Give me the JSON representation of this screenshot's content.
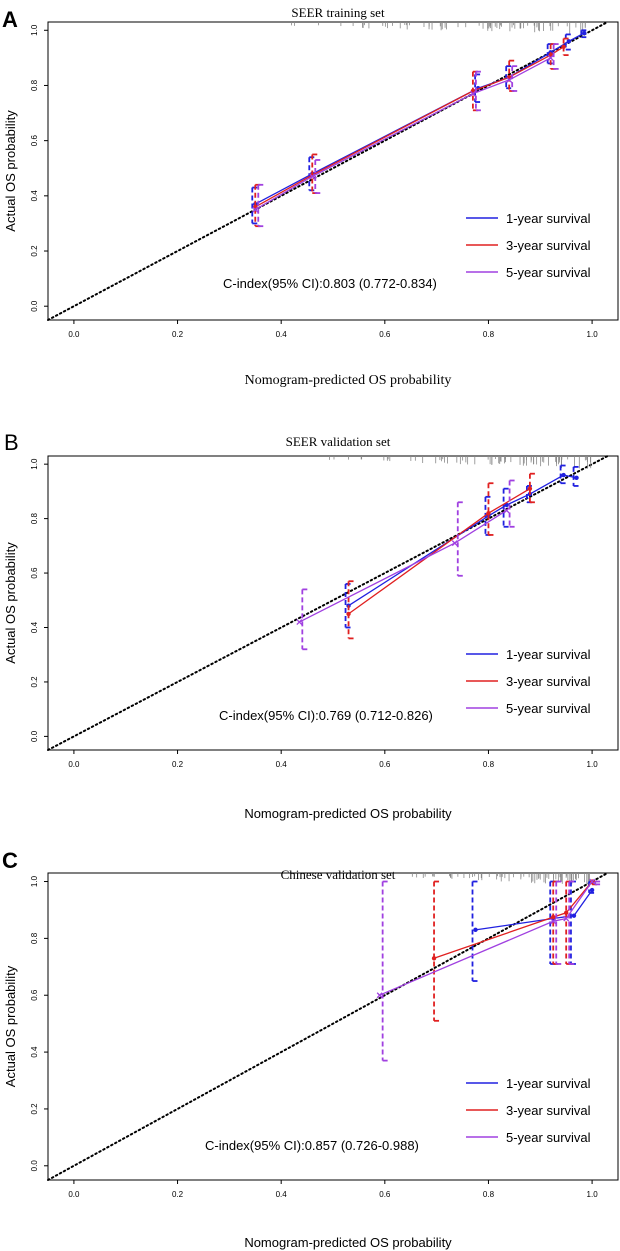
{
  "legend": [
    {
      "label": "1-year survival",
      "color": "#2020e0"
    },
    {
      "label": "3-year survival",
      "color": "#e02020"
    },
    {
      "label": "5-year survival",
      "color": "#a040e0"
    }
  ],
  "chart_data": [
    {
      "type": "line",
      "panel_label": "A",
      "title": "SEER training set",
      "xlabel": "Nomogram-predicted OS probability",
      "ylabel": "Actual OS probability",
      "xlim": [
        -0.05,
        1.05
      ],
      "ylim": [
        -0.05,
        1.03
      ],
      "x_ticks": [
        "0.0",
        "0.2",
        "0.4",
        "0.6",
        "0.8",
        "1.0"
      ],
      "y_ticks": [
        "0.0",
        "0.2",
        "0.4",
        "0.6",
        "0.8",
        "1.0"
      ],
      "cindex": "C-index(95% CI):0.803 (0.772-0.834)",
      "reference_line": "ideal (y = x), dotted",
      "series": [
        {
          "name": "1-year survival",
          "x": [
            0.35,
            0.46,
            0.78,
            0.84,
            0.92,
            0.955,
            0.985
          ],
          "y": [
            0.37,
            0.48,
            0.79,
            0.83,
            0.92,
            0.96,
            0.99
          ],
          "ci_low": [
            0.3,
            0.42,
            0.74,
            0.79,
            0.88,
            0.93,
            0.975
          ],
          "ci_high": [
            0.43,
            0.54,
            0.84,
            0.87,
            0.95,
            0.985,
            1.0
          ]
        },
        {
          "name": "3-year survival",
          "x": [
            0.35,
            0.46,
            0.77,
            0.84,
            0.92,
            0.945
          ],
          "y": [
            0.36,
            0.475,
            0.78,
            0.83,
            0.91,
            0.94
          ],
          "ci_low": [
            0.29,
            0.41,
            0.71,
            0.78,
            0.86,
            0.91
          ],
          "ci_high": [
            0.44,
            0.55,
            0.85,
            0.89,
            0.95,
            0.97
          ]
        },
        {
          "name": "5-year survival",
          "x": [
            0.35,
            0.46,
            0.77,
            0.84,
            0.92
          ],
          "y": [
            0.35,
            0.47,
            0.77,
            0.82,
            0.9
          ],
          "ci_low": [
            0.29,
            0.41,
            0.71,
            0.78,
            0.86
          ],
          "ci_high": [
            0.44,
            0.53,
            0.85,
            0.87,
            0.95
          ]
        }
      ]
    },
    {
      "type": "line",
      "panel_label": "B",
      "title": "SEER validation set",
      "xlabel": "Nomogram-predicted OS probability",
      "ylabel": "Actual OS probability",
      "xlim": [
        -0.05,
        1.05
      ],
      "ylim": [
        -0.05,
        1.03
      ],
      "x_ticks": [
        "0.0",
        "0.2",
        "0.4",
        "0.6",
        "0.8",
        "1.0"
      ],
      "y_ticks": [
        "0.0",
        "0.2",
        "0.4",
        "0.6",
        "0.8",
        "1.0"
      ],
      "cindex": "C-index(95% CI):0.769 (0.712-0.826)",
      "reference_line": "ideal (y = x), dotted",
      "series": [
        {
          "name": "1-year survival",
          "x": [
            0.53,
            0.8,
            0.835,
            0.88,
            0.945,
            0.97
          ],
          "y": [
            0.48,
            0.81,
            0.85,
            0.89,
            0.96,
            0.95
          ],
          "ci_low": [
            0.4,
            0.74,
            0.77,
            0.86,
            0.93,
            0.92
          ],
          "ci_high": [
            0.56,
            0.88,
            0.91,
            0.92,
            0.995,
            0.99
          ]
        },
        {
          "name": "3-year survival",
          "x": [
            0.53,
            0.8,
            0.88
          ],
          "y": [
            0.45,
            0.82,
            0.91
          ],
          "ci_low": [
            0.36,
            0.74,
            0.86
          ],
          "ci_high": [
            0.57,
            0.93,
            0.965
          ]
        },
        {
          "name": "5-year survival",
          "x": [
            0.435,
            0.735,
            0.835
          ],
          "y": [
            0.42,
            0.71,
            0.83
          ],
          "ci_low": [
            0.32,
            0.59,
            0.77
          ],
          "ci_high": [
            0.54,
            0.86,
            0.94
          ]
        }
      ]
    },
    {
      "type": "line",
      "panel_label": "C",
      "title": "Chinese validation set",
      "xlabel": "Nomogram-predicted OS probability",
      "ylabel": "Actual OS probability",
      "xlim": [
        -0.05,
        1.05
      ],
      "ylim": [
        -0.05,
        1.03
      ],
      "x_ticks": [
        "0.0",
        "0.2",
        "0.4",
        "0.6",
        "0.8",
        "1.0"
      ],
      "y_ticks": [
        "0.0",
        "0.2",
        "0.4",
        "0.6",
        "0.8",
        "1.0"
      ],
      "cindex": "C-index(95% CI):0.857 (0.726-0.988)",
      "reference_line": "ideal (y = x), dotted",
      "series": [
        {
          "name": "1-year survival",
          "x": [
            0.775,
            0.925,
            0.965,
            1.0
          ],
          "y": [
            0.83,
            0.87,
            0.88,
            0.97
          ],
          "ci_low": [
            0.65,
            0.71,
            0.71,
            0.96
          ],
          "ci_high": [
            1.0,
            1.0,
            1.0,
            1.0
          ]
        },
        {
          "name": "3-year survival",
          "x": [
            0.695,
            0.925,
            0.95,
            1.0
          ],
          "y": [
            0.73,
            0.875,
            0.89,
            1.0
          ],
          "ci_low": [
            0.51,
            0.71,
            0.71,
            0.99
          ],
          "ci_high": [
            1.0,
            1.0,
            1.0,
            1.0
          ]
        },
        {
          "name": "5-year survival",
          "x": [
            0.59,
            0.925,
            0.95,
            1.0
          ],
          "y": [
            0.6,
            0.86,
            0.87,
            1.0
          ],
          "ci_low": [
            0.37,
            0.71,
            0.71,
            0.99
          ],
          "ci_high": [
            1.0,
            1.0,
            1.0,
            1.0
          ]
        }
      ]
    }
  ]
}
